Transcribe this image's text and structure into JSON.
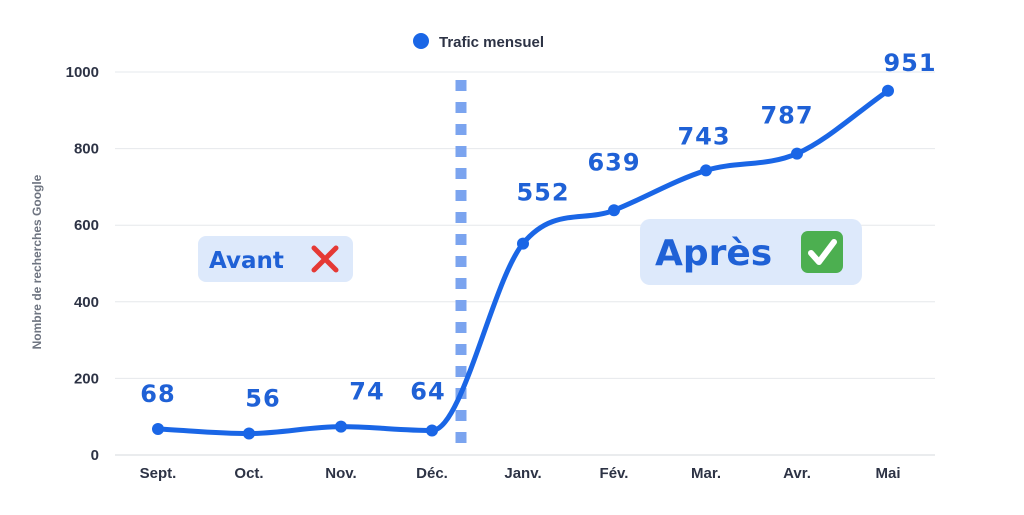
{
  "chart_data": {
    "type": "line",
    "categories": [
      "Sept.",
      "Oct.",
      "Nov.",
      "Déc.",
      "Janv.",
      "Fév.",
      "Mar.",
      "Avr.",
      "Mai"
    ],
    "series": [
      {
        "name": "Trafic mensuel",
        "values": [
          68,
          56,
          74,
          64,
          552,
          639,
          743,
          787,
          951
        ]
      }
    ],
    "data_labels": [
      "68",
      "56",
      "74",
      "64",
      "552",
      "639",
      "743",
      "787",
      "951"
    ],
    "ylabel": "Nombre de recherches Google",
    "yticks": [
      "0",
      "200",
      "400",
      "600",
      "800",
      "1000"
    ],
    "ylim": [
      0,
      1000
    ],
    "grid": true,
    "legend_position": "top-center",
    "divider_after_category": "Déc.",
    "annotations": {
      "before": {
        "text": "Avant",
        "icon": "cross-mark-icon"
      },
      "after": {
        "text": "Après",
        "icon": "check-mark-icon"
      }
    },
    "colors": {
      "line": "#1a66e6",
      "divider": "#7ba4ef",
      "label": "#1f61d6",
      "box_fill": "#dde9fb",
      "grid": "#e6e8ec",
      "cross": "#e53935",
      "check": "#4caf50"
    }
  }
}
